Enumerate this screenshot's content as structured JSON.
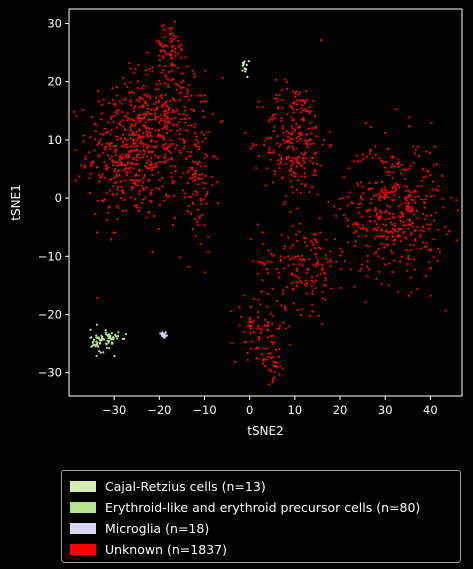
{
  "chart_data": {
    "type": "scatter",
    "title": "",
    "xlabel": "tSNE2",
    "ylabel": "tSNE1",
    "xlim": [
      -40,
      47
    ],
    "ylim": [
      -34,
      32.5
    ],
    "xticks": [
      -30,
      -20,
      -10,
      0,
      10,
      20,
      30,
      40
    ],
    "yticks": [
      -30,
      -20,
      -10,
      0,
      10,
      20,
      30
    ],
    "xtick_labels": [
      "−30",
      "−20",
      "−10",
      "0",
      "10",
      "20",
      "30",
      "40"
    ],
    "ytick_labels": [
      "−30",
      "−20",
      "−10",
      "0",
      "10",
      "20",
      "30"
    ],
    "grid": false,
    "legend_position": "below",
    "series": [
      {
        "name": "Cajal-Retzius cells (n=13)",
        "color": "#d4ecb0",
        "clusters": [
          {
            "cx": -1,
            "cy": 22.6,
            "sx": 0.4,
            "sy": 0.9,
            "n": 13
          }
        ]
      },
      {
        "name": "Erythroid-like and erythroid precursor cells (n=80)",
        "color": "#b6e48e",
        "clusters": [
          {
            "cx": -32,
            "cy": -24.5,
            "sx": 1.6,
            "sy": 1.0,
            "n": 80
          }
        ]
      },
      {
        "name": "Microglia (n=18)",
        "color": "#d8d6f0",
        "clusters": [
          {
            "cx": -19,
            "cy": -23.5,
            "sx": 0.4,
            "sy": 0.4,
            "n": 18
          }
        ]
      },
      {
        "name": "Unknown (n=1837)",
        "color": "#ff0000",
        "clusters": [
          {
            "cx": -26,
            "cy": 8,
            "sx": 5,
            "sy": 6,
            "n": 500
          },
          {
            "cx": -18,
            "cy": 14,
            "sx": 4,
            "sy": 5,
            "n": 200
          },
          {
            "cx": -18,
            "cy": 26,
            "sx": 2,
            "sy": 2,
            "n": 70
          },
          {
            "cx": -12,
            "cy": 3,
            "sx": 2.2,
            "sy": 6,
            "n": 110
          },
          {
            "cx": 10,
            "cy": 10,
            "sx": 3.5,
            "sy": 5,
            "n": 250
          },
          {
            "cx": 12,
            "cy": -11,
            "sx": 5,
            "sy": 4,
            "n": 170
          },
          {
            "cx": 2,
            "cy": -22,
            "sx": 3,
            "sy": 2.5,
            "n": 70
          },
          {
            "cx": 5,
            "cy": -28.5,
            "sx": 1.5,
            "sy": 1.5,
            "n": 37
          },
          {
            "cx": 32,
            "cy": -2,
            "sx": 5.5,
            "sy": 6,
            "n": 430
          }
        ]
      }
    ]
  }
}
